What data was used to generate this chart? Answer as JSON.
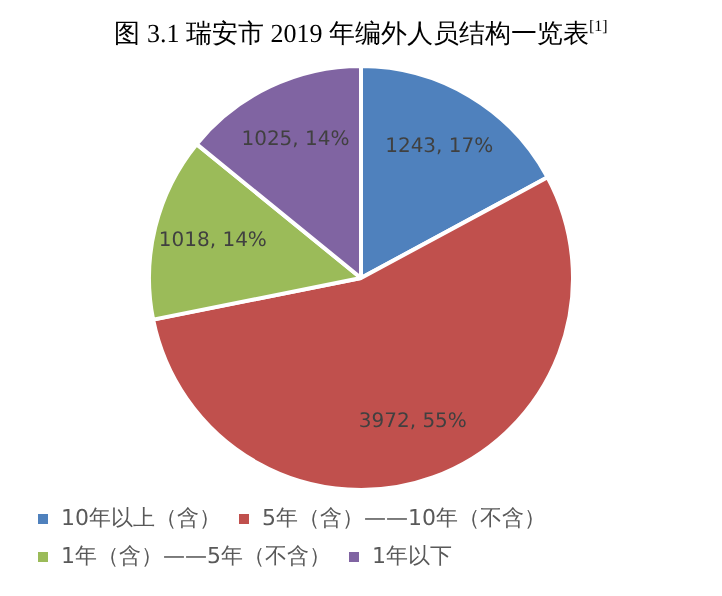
{
  "chart_data": {
    "type": "pie",
    "title": "图 3.1 瑞安市 2019 年编外人员结构一览表$^{[1]}$",
    "categories": [
      "10年以上（含）",
      "5年（含）——10年（不含）",
      "1年（含）——5年（不含）",
      "1年以下"
    ],
    "values": [
      1243,
      3972,
      1018,
      1025
    ],
    "colors": [
      "#4f81bd",
      "#c0504d",
      "#9bbb59",
      "#8064a2"
    ],
    "value_labels": [
      "1243, 17%",
      "3972, 55%",
      "1018, 14%",
      "1025, 14%"
    ],
    "legend": "bottom"
  }
}
